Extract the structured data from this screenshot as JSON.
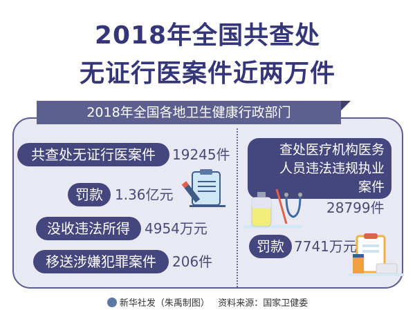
{
  "title": {
    "line1": "2018年全国共查处",
    "line2": "无证行医案件近两万件"
  },
  "banner": "2018年全国各地卫生健康行政部门",
  "left_items": [
    {
      "label": "共查处无证行医案件",
      "value": "19245件"
    },
    {
      "label": "罚款",
      "value": "1.36亿元"
    },
    {
      "label": "没收违法所得",
      "value": "4954万元"
    },
    {
      "label": "移送涉嫌犯罪案件",
      "value": "206件"
    }
  ],
  "right": {
    "box_lines": [
      "查处医疗机构医务",
      "人员违法违规执业",
      "案件"
    ],
    "value": "28799件",
    "fine_label": "罚款",
    "fine_value": "7741万元"
  },
  "footer": {
    "source": "新华社发（朱禹制图）",
    "data_source": "资料来源：国家卫健委"
  },
  "colors": {
    "title": "#35367a",
    "pill": "#46467f",
    "panel": "#e9e9f4",
    "banner": "#5d5f90"
  }
}
